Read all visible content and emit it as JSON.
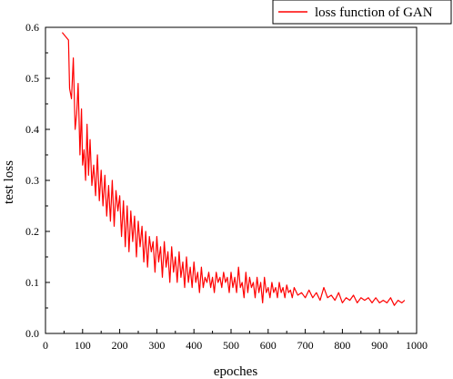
{
  "chart_data": {
    "type": "line",
    "xlabel": "epoches",
    "ylabel": "test loss",
    "xlim": [
      0,
      1000
    ],
    "ylim": [
      0.0,
      0.6
    ],
    "x_ticks": [
      0,
      100,
      200,
      300,
      400,
      500,
      600,
      700,
      800,
      900,
      1000
    ],
    "y_ticks": [
      "0.0",
      "0.1",
      "0.2",
      "0.3",
      "0.4",
      "0.5",
      "0.6"
    ],
    "legend_position": "top-right",
    "series": [
      {
        "name": "loss function of GAN",
        "color": "#ff0000",
        "x": [
          45,
          62,
          65,
          70,
          75,
          80,
          84,
          88,
          93,
          97,
          100,
          104,
          108,
          112,
          116,
          120,
          125,
          130,
          135,
          140,
          145,
          150,
          155,
          160,
          165,
          170,
          175,
          180,
          185,
          190,
          195,
          200,
          205,
          210,
          215,
          220,
          225,
          230,
          235,
          240,
          245,
          250,
          255,
          260,
          265,
          270,
          275,
          280,
          285,
          290,
          295,
          300,
          305,
          310,
          315,
          320,
          325,
          330,
          335,
          340,
          345,
          350,
          355,
          360,
          365,
          370,
          375,
          380,
          385,
          390,
          395,
          400,
          405,
          410,
          415,
          420,
          425,
          430,
          435,
          440,
          445,
          450,
          455,
          460,
          465,
          470,
          475,
          480,
          485,
          490,
          495,
          500,
          505,
          510,
          515,
          520,
          525,
          530,
          535,
          540,
          545,
          550,
          555,
          560,
          565,
          570,
          575,
          580,
          585,
          590,
          595,
          600,
          605,
          610,
          615,
          620,
          625,
          630,
          635,
          640,
          645,
          650,
          655,
          660,
          665,
          670,
          680,
          690,
          700,
          710,
          720,
          730,
          740,
          750,
          760,
          770,
          780,
          790,
          800,
          810,
          820,
          830,
          840,
          850,
          860,
          870,
          880,
          890,
          900,
          910,
          920,
          930,
          940,
          950,
          960,
          968
        ],
        "values": [
          0.59,
          0.575,
          0.48,
          0.46,
          0.54,
          0.4,
          0.43,
          0.49,
          0.35,
          0.44,
          0.33,
          0.36,
          0.3,
          0.41,
          0.31,
          0.38,
          0.29,
          0.33,
          0.27,
          0.35,
          0.26,
          0.32,
          0.25,
          0.31,
          0.23,
          0.29,
          0.22,
          0.3,
          0.21,
          0.28,
          0.24,
          0.27,
          0.19,
          0.26,
          0.17,
          0.25,
          0.16,
          0.24,
          0.18,
          0.23,
          0.15,
          0.22,
          0.17,
          0.21,
          0.14,
          0.2,
          0.13,
          0.19,
          0.16,
          0.18,
          0.12,
          0.19,
          0.14,
          0.17,
          0.11,
          0.18,
          0.13,
          0.16,
          0.1,
          0.17,
          0.12,
          0.15,
          0.1,
          0.16,
          0.11,
          0.14,
          0.09,
          0.15,
          0.1,
          0.13,
          0.09,
          0.14,
          0.1,
          0.12,
          0.08,
          0.13,
          0.09,
          0.11,
          0.1,
          0.12,
          0.09,
          0.11,
          0.08,
          0.12,
          0.1,
          0.11,
          0.09,
          0.12,
          0.1,
          0.11,
          0.08,
          0.12,
          0.09,
          0.11,
          0.08,
          0.13,
          0.09,
          0.1,
          0.07,
          0.12,
          0.08,
          0.11,
          0.09,
          0.1,
          0.07,
          0.11,
          0.08,
          0.1,
          0.06,
          0.11,
          0.08,
          0.09,
          0.07,
          0.1,
          0.08,
          0.09,
          0.07,
          0.1,
          0.08,
          0.09,
          0.07,
          0.095,
          0.08,
          0.085,
          0.07,
          0.09,
          0.075,
          0.08,
          0.07,
          0.085,
          0.07,
          0.08,
          0.065,
          0.09,
          0.07,
          0.075,
          0.065,
          0.08,
          0.06,
          0.07,
          0.065,
          0.075,
          0.06,
          0.07,
          0.065,
          0.07,
          0.06,
          0.07,
          0.06,
          0.065,
          0.06,
          0.07,
          0.055,
          0.065,
          0.06,
          0.065
        ]
      }
    ]
  }
}
